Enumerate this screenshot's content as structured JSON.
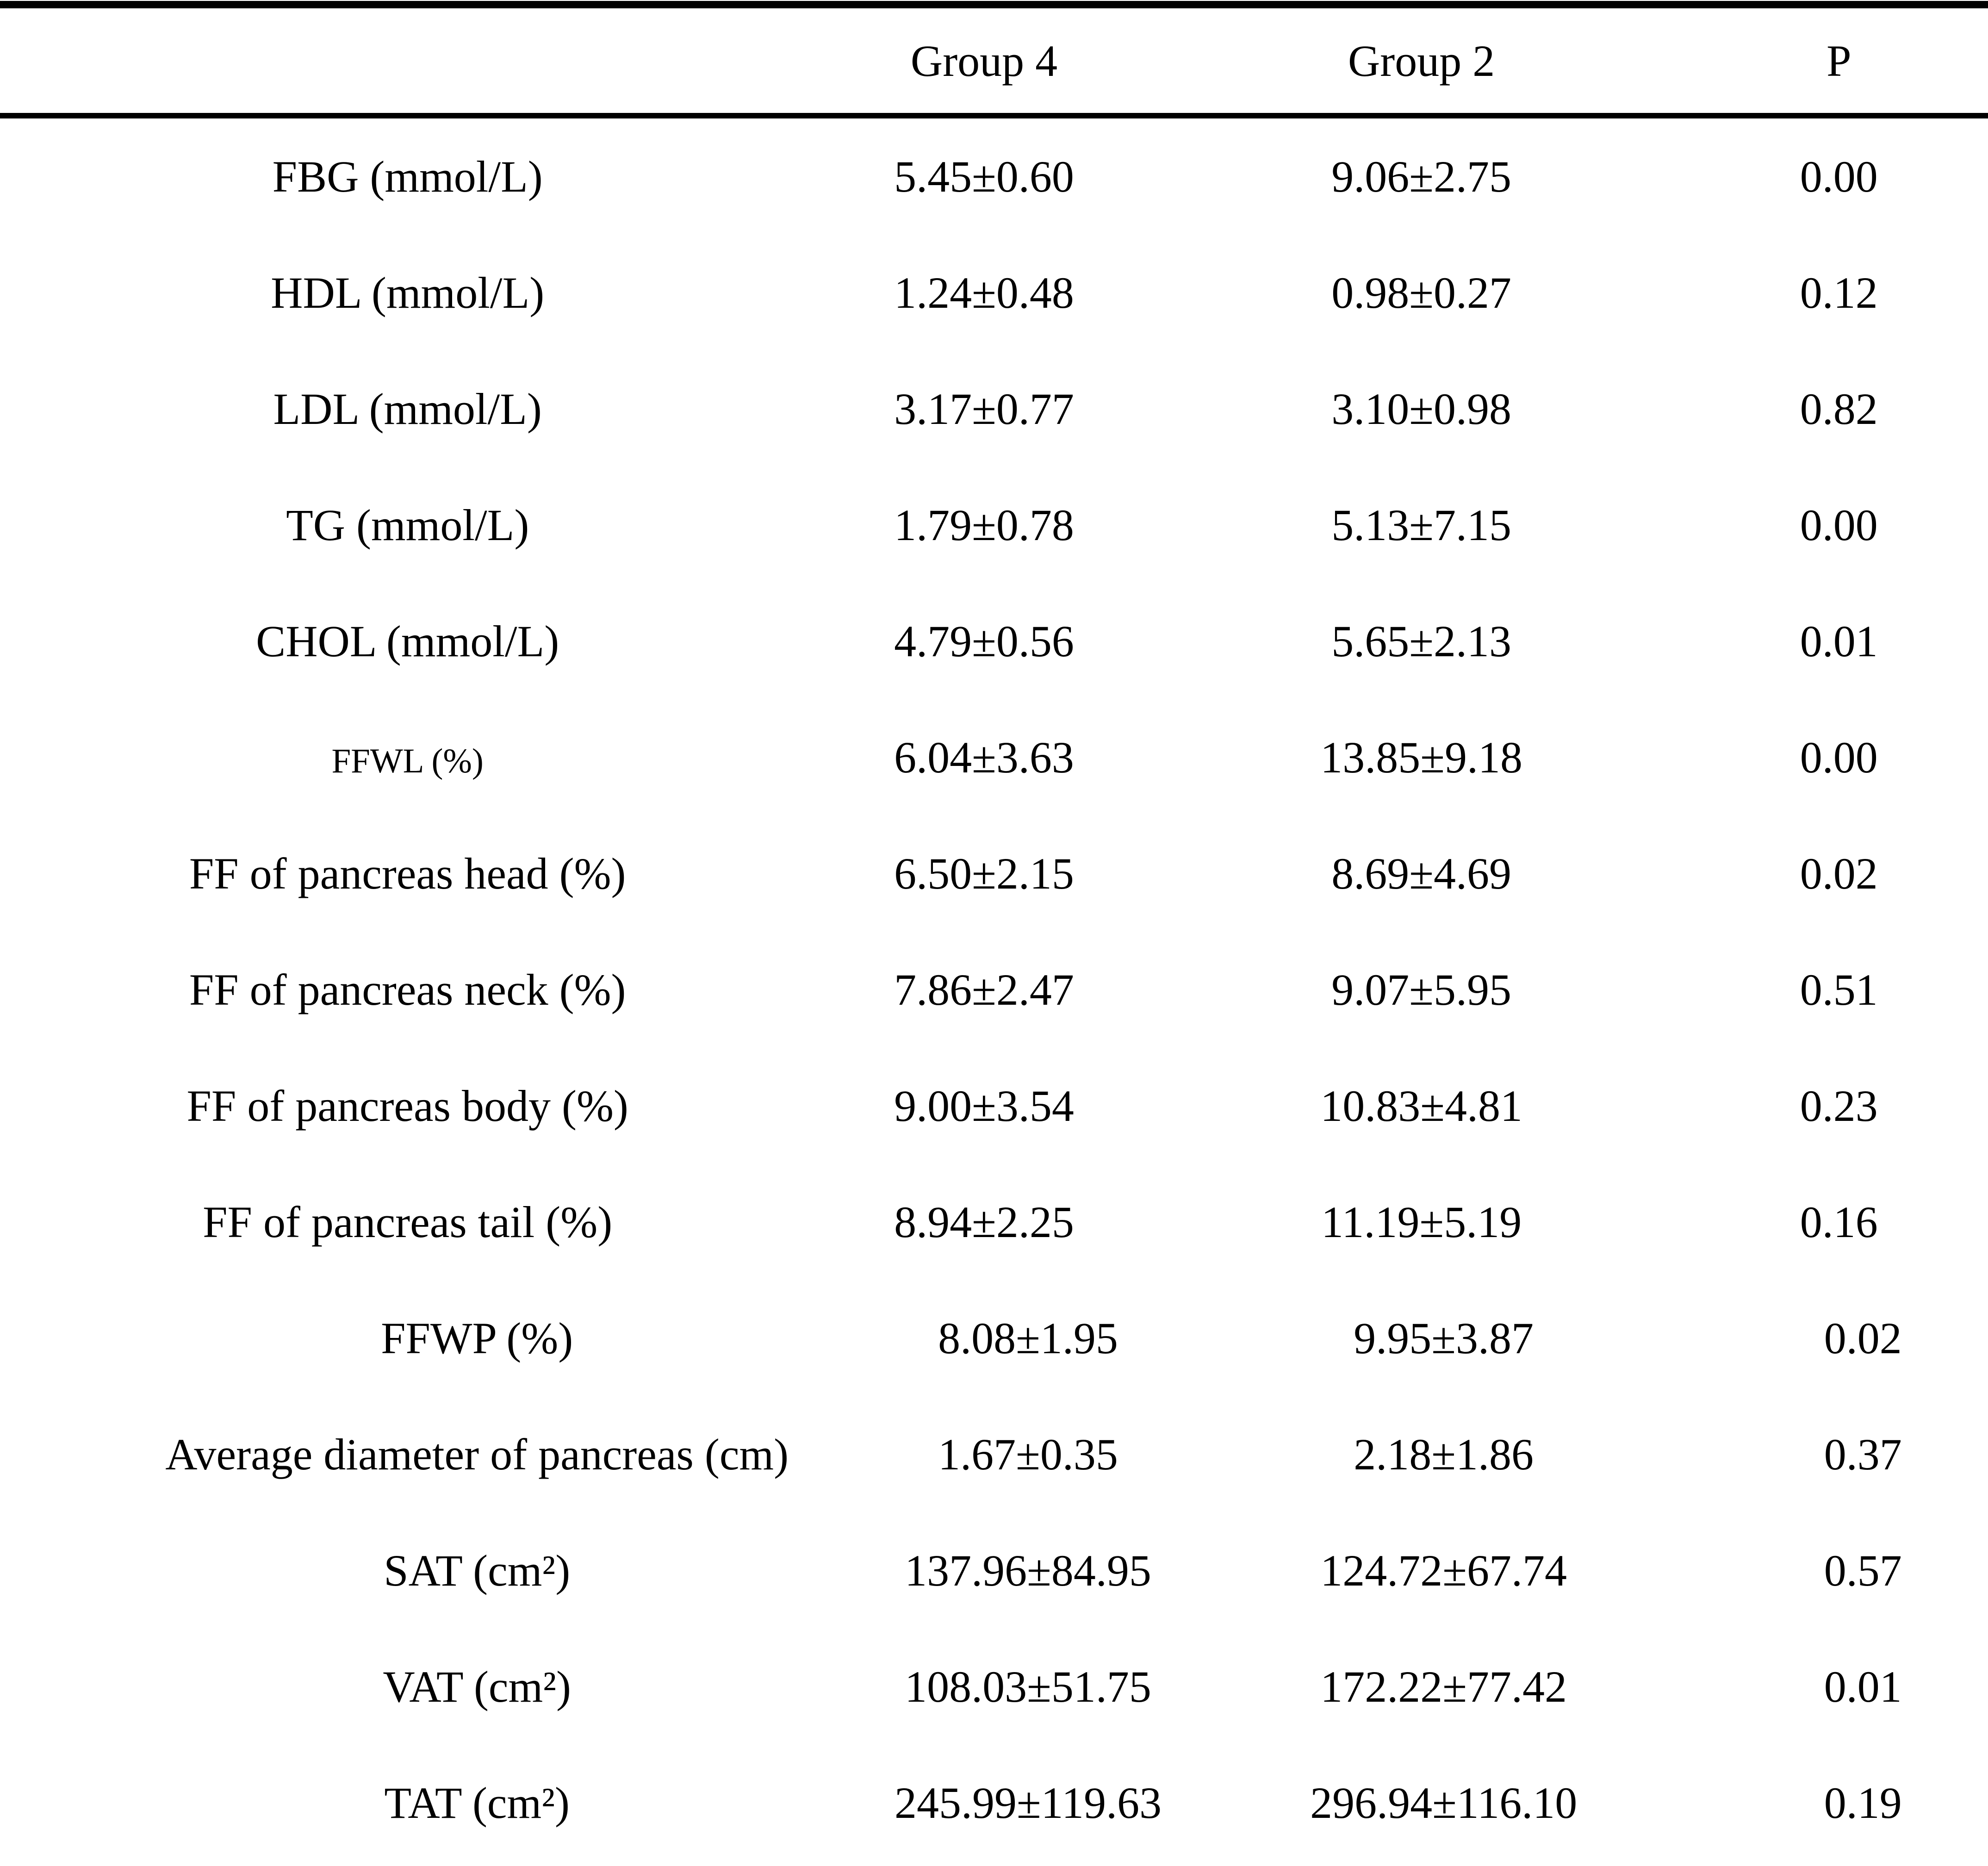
{
  "header": {
    "col0": "",
    "col1": "Group 4",
    "col2": "Group 2",
    "col3": "P"
  },
  "rows": [
    {
      "label": "FBG (mmol/L)",
      "group4": "5.45±0.60",
      "group2": "9.06±2.75",
      "p": "0.00",
      "small_label": false,
      "indented": false
    },
    {
      "label": "HDL (mmol/L)",
      "group4": "1.24±0.48",
      "group2": "0.98±0.27",
      "p": "0.12",
      "small_label": false,
      "indented": false
    },
    {
      "label": "LDL (mmol/L)",
      "group4": "3.17±0.77",
      "group2": "3.10±0.98",
      "p": "0.82",
      "small_label": false,
      "indented": false
    },
    {
      "label": "TG (mmol/L)",
      "group4": "1.79±0.78",
      "group2": "5.13±7.15",
      "p": "0.00",
      "small_label": false,
      "indented": false
    },
    {
      "label": "CHOL (mmol/L)",
      "group4": "4.79±0.56",
      "group2": "5.65±2.13",
      "p": "0.01",
      "small_label": false,
      "indented": false
    },
    {
      "label": "FFWL (%)",
      "group4": "6.04±3.63",
      "group2": "13.85±9.18",
      "p": "0.00",
      "small_label": true,
      "indented": false
    },
    {
      "label": "FF of pancreas head (%)",
      "group4": "6.50±2.15",
      "group2": "8.69±4.69",
      "p": "0.02",
      "small_label": false,
      "indented": false
    },
    {
      "label": "FF of pancreas neck (%)",
      "group4": "7.86±2.47",
      "group2": "9.07±5.95",
      "p": "0.51",
      "small_label": false,
      "indented": false
    },
    {
      "label": "FF of pancreas body (%)",
      "group4": "9.00±3.54",
      "group2": "10.83±4.81",
      "p": "0.23",
      "small_label": false,
      "indented": false
    },
    {
      "label": "FF of pancreas tail (%)",
      "group4": "8.94±2.25",
      "group2": "11.19±5.19",
      "p": "0.16",
      "small_label": false,
      "indented": false
    },
    {
      "label": "FFWP (%)",
      "group4": "8.08±1.95",
      "group2": "9.95±3.87",
      "p": "0.02",
      "small_label": false,
      "indented": true
    },
    {
      "label": "Average diameter of pancreas (cm)",
      "group4": "1.67±0.35",
      "group2": "2.18±1.86",
      "p": "0.37",
      "small_label": false,
      "indented": true
    },
    {
      "label": "SAT (cm²)",
      "group4": "137.96±84.95",
      "group2": "124.72±67.74",
      "p": "0.57",
      "small_label": false,
      "indented": true
    },
    {
      "label": "VAT (cm²)",
      "group4": "108.03±51.75",
      "group2": "172.22±77.42",
      "p": "0.01",
      "small_label": false,
      "indented": true
    },
    {
      "label": "TAT (cm²)",
      "group4": "245.99±119.63",
      "group2": "296.94±116.10",
      "p": "0.19",
      "small_label": false,
      "indented": true
    }
  ]
}
